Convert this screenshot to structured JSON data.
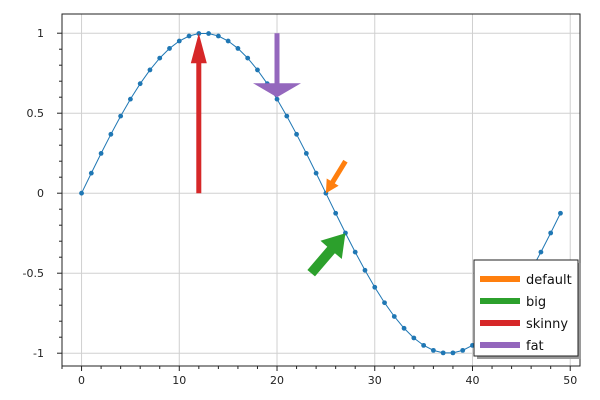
{
  "chart_data": {
    "type": "line",
    "title": "",
    "xlabel": "",
    "ylabel": "",
    "xlim": [
      -2,
      51
    ],
    "ylim": [
      -1.08,
      1.12
    ],
    "x_ticks": [
      0,
      10,
      20,
      30,
      40,
      50
    ],
    "y_ticks": [
      -1,
      -0.5,
      0,
      0.5,
      1
    ],
    "x_tick_labels": [
      "0",
      "10",
      "20",
      "30",
      "40",
      "50"
    ],
    "y_tick_labels": [
      "-1",
      "-0.5",
      "0",
      "0.5",
      "1"
    ],
    "grid": true,
    "series": [
      {
        "color": "#1f77b4",
        "x": [
          0,
          1,
          2,
          3,
          4,
          5,
          6,
          7,
          8,
          9,
          10,
          11,
          12,
          13,
          14,
          15,
          16,
          17,
          18,
          19,
          20,
          21,
          22,
          23,
          24,
          25,
          26,
          27,
          28,
          29,
          30,
          31,
          32,
          33,
          34,
          35,
          36,
          37,
          38,
          39,
          40,
          41,
          42,
          43,
          44,
          45,
          46,
          47,
          48,
          49
        ],
        "y": [
          0,
          0.1253,
          0.2487,
          0.3681,
          0.4818,
          0.5878,
          0.6845,
          0.7705,
          0.8443,
          0.9048,
          0.9511,
          0.9823,
          0.998,
          0.998,
          0.9823,
          0.9511,
          0.9048,
          0.8443,
          0.7705,
          0.6845,
          0.5878,
          0.4818,
          0.3681,
          0.2487,
          0.1253,
          0,
          -0.1253,
          -0.2487,
          -0.3681,
          -0.4818,
          -0.5878,
          -0.6845,
          -0.7705,
          -0.8443,
          -0.9048,
          -0.9511,
          -0.9823,
          -0.998,
          -0.998,
          -0.9823,
          -0.9511,
          -0.9048,
          -0.8443,
          -0.7705,
          -0.6845,
          -0.5878,
          -0.4818,
          -0.3681,
          -0.2487,
          -0.1253
        ]
      }
    ],
    "arrows": [
      {
        "name": "default",
        "color": "#ff7f0e",
        "from": [
          27,
          0.2
        ],
        "to": [
          25,
          0
        ],
        "style": "default"
      },
      {
        "name": "big",
        "color": "#2ca02c",
        "from": [
          23.5,
          -0.5
        ],
        "to": [
          27,
          -0.25
        ],
        "style": "big"
      },
      {
        "name": "skinny",
        "color": "#d62728",
        "from": [
          12,
          0
        ],
        "to": [
          12,
          1
        ],
        "style": "skinny"
      },
      {
        "name": "fat",
        "color": "#9467bd",
        "from": [
          20,
          1
        ],
        "to": [
          20,
          0.6
        ],
        "style": "fat"
      }
    ],
    "legend": {
      "position": "bottom-right",
      "entries": [
        {
          "label": "default",
          "color": "#ff7f0e"
        },
        {
          "label": "big",
          "color": "#2ca02c"
        },
        {
          "label": "skinny",
          "color": "#d62728"
        },
        {
          "label": "fat",
          "color": "#9467bd"
        }
      ]
    }
  }
}
